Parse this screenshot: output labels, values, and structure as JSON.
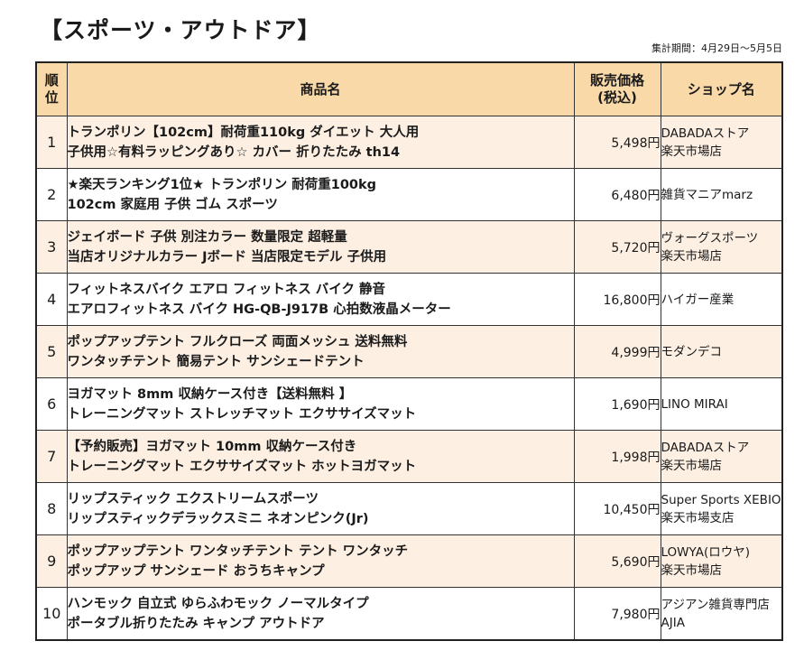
{
  "page": {
    "title": "【スポーツ・アウトドア】",
    "period": "集計期間：4月29日～5月5日"
  },
  "table": {
    "headers": {
      "rank": [
        "順",
        "位"
      ],
      "name": "商品名",
      "price": [
        "販売価格",
        "(税込)"
      ],
      "shop": "ショップ名"
    },
    "rows": [
      {
        "rank": "1",
        "name": [
          "トランポリン【102cm】耐荷重110kg ダイエット 大人用",
          "子供用☆有料ラッピングあり☆ カバー 折りたたみ th14"
        ],
        "price": "5,498円",
        "shop": [
          "DABADAストア",
          "楽天市場店"
        ]
      },
      {
        "rank": "2",
        "name": [
          "★楽天ランキング1位★ トランポリン 耐荷重100kg",
          "102cm 家庭用 子供 ゴム スポーツ"
        ],
        "price": "6,480円",
        "shop": [
          "雑貨マニアmarz",
          ""
        ]
      },
      {
        "rank": "3",
        "name": [
          "ジェイボード 子供 別注カラー 数量限定 超軽量",
          "当店オリジナルカラー Jボード 当店限定モデル 子供用"
        ],
        "price": "5,720円",
        "shop": [
          "ヴォーグスポーツ",
          "楽天市場店"
        ]
      },
      {
        "rank": "4",
        "name": [
          "フィットネスバイク エアロ フィットネス バイク 静音",
          "エアロフィットネス バイク HG-QB-J917B 心拍数液晶メーター"
        ],
        "price": "16,800円",
        "shop": [
          "ハイガー産業",
          ""
        ]
      },
      {
        "rank": "5",
        "name": [
          "ポップアップテント フルクローズ 両面メッシュ 送料無料",
          "ワンタッチテント 簡易テント サンシェードテント"
        ],
        "price": "4,999円",
        "shop": [
          "モダンデコ",
          ""
        ]
      },
      {
        "rank": "6",
        "name": [
          "ヨガマット 8mm 収納ケース付き【送料無料 】",
          "トレーニングマット ストレッチマット エクササイズマット"
        ],
        "price": "1,690円",
        "shop": [
          "LINO MIRAI",
          ""
        ]
      },
      {
        "rank": "7",
        "name": [
          "【予約販売】ヨガマット 10mm 収納ケース付き",
          "トレーニングマット エクササイズマット ホットヨガマット"
        ],
        "price": "1,998円",
        "shop": [
          "DABADAストア",
          "楽天市場店"
        ]
      },
      {
        "rank": "8",
        "name": [
          "リップスティック エクストリームスポーツ",
          "リップスティックデラックスミニ ネオンピンク(Jr)"
        ],
        "price": "10,450円",
        "shop": [
          "Super Sports XEBIO",
          "楽天市場支店"
        ]
      },
      {
        "rank": "9",
        "name": [
          "ポップアップテント ワンタッチテント テント ワンタッチ",
          "ポップアップ サンシェード おうちキャンプ"
        ],
        "price": "5,690円",
        "shop": [
          "LOWYA(ロウヤ)",
          "楽天市場店"
        ]
      },
      {
        "rank": "10",
        "name": [
          "ハンモック 自立式 ゆらふわモック ノーマルタイプ",
          "ポータブル折りたたみ キャンプ アウトドア"
        ],
        "price": "7,980円",
        "shop": [
          "アジアン雑貨専門店",
          "AJIA"
        ]
      }
    ]
  },
  "colors": {
    "header_bg": "#f9d9a8",
    "alt_row_bg": "#fdf0e3",
    "border": "#333333"
  }
}
